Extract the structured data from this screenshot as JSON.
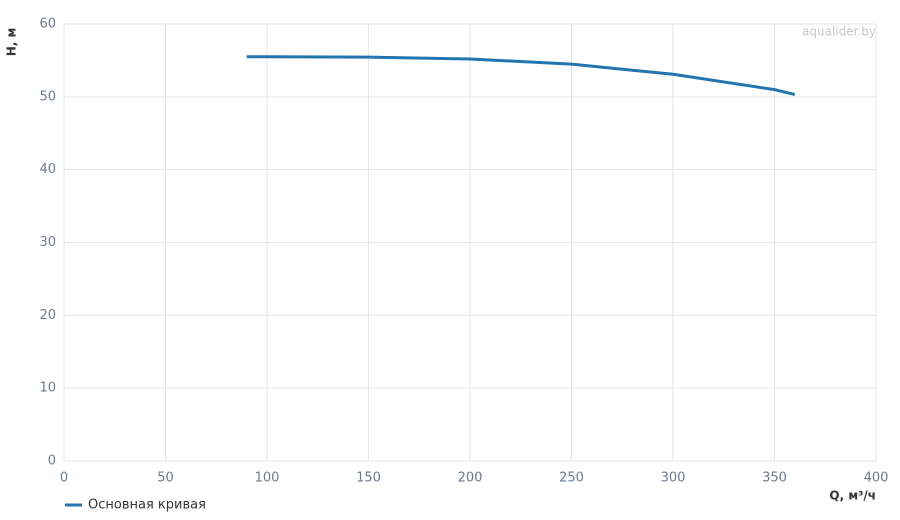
{
  "chart_data": {
    "type": "line",
    "x_label": "Q, м³/ч",
    "y_label": "H, м",
    "watermark": "aqualider.by",
    "xlim": [
      0,
      400
    ],
    "xticks": [
      0,
      50,
      100,
      150,
      200,
      250,
      300,
      350,
      400
    ],
    "ylim": [
      0,
      60
    ],
    "yticks": [
      0,
      10,
      20,
      30,
      40,
      50,
      60
    ],
    "grid": true,
    "legend": "bottom-left",
    "x": [
      90,
      100,
      150,
      200,
      250,
      300,
      350,
      360
    ],
    "series": [
      {
        "name": "Основная кривая",
        "color": "#2474b0",
        "values": [
          55.5,
          55.5,
          55.45,
          55.2,
          54.5,
          53.1,
          51.0,
          50.3
        ]
      }
    ]
  }
}
